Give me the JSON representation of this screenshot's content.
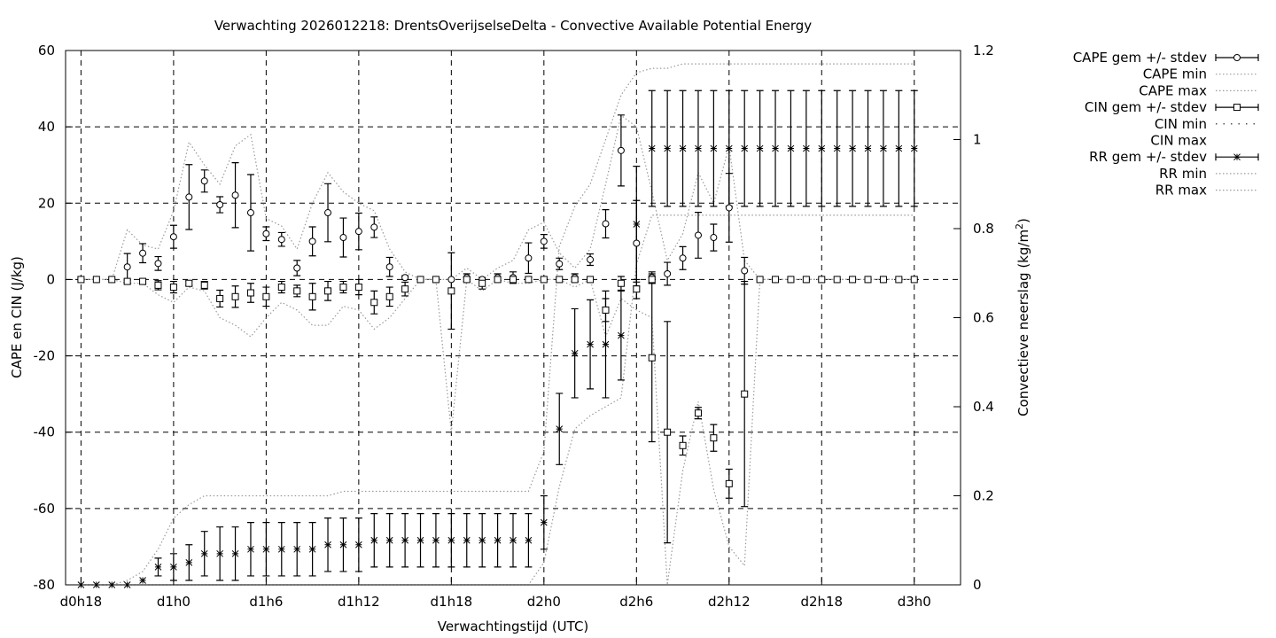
{
  "chart_data": {
    "type": "line",
    "title": "Verwachting 2026012218: DrentsOverijselseDelta - Convective Available Potential Energy",
    "xlabel": "Verwachtingstijd (UTC)",
    "ylabel": "CAPE en CIN (J/kg)",
    "y2label": "Convectieve neerslag (kg/m",
    "y2label_sup": "2",
    "y2label_tail": ")",
    "xlim": [
      -1,
      57
    ],
    "ylim": [
      -80,
      60
    ],
    "y2lim": [
      0,
      1.2
    ],
    "grid": true,
    "legend_position": "outside-right",
    "xticks": [
      {
        "v": 0,
        "label": "d0h18"
      },
      {
        "v": 6,
        "label": "d1h0"
      },
      {
        "v": 12,
        "label": "d1h6"
      },
      {
        "v": 18,
        "label": "d1h12"
      },
      {
        "v": 24,
        "label": "d1h18"
      },
      {
        "v": 30,
        "label": "d2h0"
      },
      {
        "v": 36,
        "label": "d2h6"
      },
      {
        "v": 42,
        "label": "d2h12"
      },
      {
        "v": 48,
        "label": "d2h18"
      },
      {
        "v": 54,
        "label": "d3h0"
      }
    ],
    "yticks": [
      60,
      40,
      20,
      0,
      -20,
      -40,
      -60,
      -80
    ],
    "y2ticks": [
      "1.2",
      "1",
      "0.8",
      "0.6",
      "0.4",
      "0.2",
      "0"
    ],
    "legend": [
      "CAPE gem +/- stdev",
      "CAPE min",
      "CAPE max",
      "CIN gem +/- stdev",
      "CIN min",
      "CIN max",
      "RR gem +/- stdev",
      "RR min",
      "RR max"
    ],
    "series": [
      {
        "name": "CAPE gem +/- stdev",
        "axis": "y1",
        "marker": "circle",
        "x": [
          0,
          1,
          2,
          3,
          4,
          5,
          6,
          7,
          8,
          9,
          10,
          11,
          12,
          13,
          14,
          15,
          16,
          17,
          18,
          19,
          20,
          21,
          22,
          23,
          24,
          25,
          26,
          27,
          28,
          29,
          30,
          31,
          32,
          33,
          34,
          35,
          36,
          37,
          38,
          39,
          40,
          41,
          42,
          43,
          44,
          45,
          46,
          47,
          48,
          49,
          50,
          51,
          52,
          53,
          54
        ],
        "mean": [
          0,
          0,
          0,
          3.3,
          6.9,
          4.2,
          11.2,
          21.6,
          25.8,
          19.6,
          22.1,
          17.5,
          12,
          10.5,
          3,
          10,
          17.5,
          11,
          12.6,
          13.7,
          3.3,
          0.5,
          0,
          0,
          0,
          0.5,
          0,
          0.5,
          0.5,
          5.6,
          10,
          4.1,
          0.5,
          5.2,
          14.6,
          33.8,
          9.5,
          0.5,
          1.5,
          5.6,
          11.6,
          11,
          18.8,
          2.3,
          0,
          0,
          0,
          0,
          0,
          0,
          0,
          0,
          0,
          0,
          0
        ],
        "stdev": [
          0,
          0,
          0,
          3.5,
          2.5,
          1.8,
          3,
          8.5,
          2.9,
          2.1,
          8.5,
          10,
          1.8,
          1.8,
          2,
          3.8,
          7.6,
          5.1,
          4.8,
          2.7,
          2.5,
          0.5,
          0,
          0,
          0,
          1,
          0,
          1,
          1.5,
          4,
          1.8,
          1.5,
          1,
          1.5,
          3.7,
          9.3,
          11.2,
          1.5,
          3,
          3,
          6,
          3.5,
          9,
          3.5,
          0,
          0,
          0,
          0,
          0,
          0,
          0,
          0,
          0,
          0,
          0
        ]
      },
      {
        "name": "CIN gem +/- stdev",
        "axis": "y1",
        "marker": "square",
        "x": [
          0,
          1,
          2,
          3,
          4,
          5,
          6,
          7,
          8,
          9,
          10,
          11,
          12,
          13,
          14,
          15,
          16,
          17,
          18,
          19,
          20,
          21,
          22,
          23,
          24,
          25,
          26,
          27,
          28,
          29,
          30,
          31,
          32,
          33,
          34,
          35,
          36,
          37,
          38,
          39,
          40,
          41,
          42,
          43,
          44,
          45,
          46,
          47,
          48,
          49,
          50,
          51,
          52,
          53,
          54
        ],
        "mean": [
          0,
          0,
          0,
          -0.5,
          -0.5,
          -1.5,
          -2,
          -1,
          -1.5,
          -5,
          -4.5,
          -3.5,
          -4.5,
          -2,
          -3,
          -4.5,
          -3,
          -2,
          -2,
          -6,
          -4.5,
          -2.5,
          0,
          0,
          -3,
          0,
          -1,
          0,
          0,
          0,
          0,
          0,
          0,
          0,
          -8,
          -1,
          -2.5,
          0,
          -40,
          -43.5,
          -35,
          -41.5,
          -53.5,
          -30,
          0,
          0,
          0,
          0,
          0,
          0,
          0,
          0,
          0,
          0,
          0
        ],
        "stdev": [
          0,
          0,
          0,
          0.5,
          0.5,
          1.2,
          1.5,
          0.6,
          1,
          2.2,
          2.8,
          2.5,
          2.5,
          1.5,
          1.5,
          3.5,
          2.5,
          1.5,
          2,
          3,
          2.5,
          1.8,
          0,
          0,
          10,
          0,
          1.5,
          0,
          0.5,
          0.5,
          0,
          0,
          0.5,
          0,
          3,
          1.8,
          2.5,
          1,
          29,
          2.5,
          1.5,
          3.5,
          3.8,
          29.5,
          0,
          0,
          0,
          0,
          0,
          0,
          0,
          0,
          0,
          0,
          0
        ],
        "mean_extra": {
          "x": 37,
          "mean": -20.5,
          "stdev": 22
        }
      },
      {
        "name": "RR gem +/- stdev",
        "axis": "y2",
        "marker": "star",
        "x": [
          0,
          1,
          2,
          3,
          4,
          5,
          6,
          7,
          8,
          9,
          10,
          11,
          12,
          13,
          14,
          15,
          16,
          17,
          18,
          19,
          20,
          21,
          22,
          23,
          24,
          25,
          26,
          27,
          28,
          29,
          30,
          31,
          32,
          33,
          34,
          35,
          36,
          37,
          38,
          39,
          40,
          41,
          42,
          43,
          44,
          45,
          46,
          47,
          48,
          49,
          50,
          51,
          52,
          53,
          54
        ],
        "mean": [
          0,
          0,
          0,
          0,
          0.01,
          0.04,
          0.04,
          0.05,
          0.07,
          0.07,
          0.07,
          0.08,
          0.08,
          0.08,
          0.08,
          0.08,
          0.09,
          0.09,
          0.09,
          0.1,
          0.1,
          0.1,
          0.1,
          0.1,
          0.1,
          0.1,
          0.1,
          0.1,
          0.1,
          0.1,
          0.14,
          0.35,
          0.52,
          0.54,
          0.54,
          0.56,
          0.81,
          0.98,
          0.98,
          0.98,
          0.98,
          0.98,
          0.98,
          0.98,
          0.98,
          0.98,
          0.98,
          0.98,
          0.98,
          0.98,
          0.98,
          0.98,
          0.98,
          0.98,
          0.98
        ],
        "stdev": [
          0,
          0,
          0,
          0,
          0,
          0.02,
          0.03,
          0.04,
          0.05,
          0.06,
          0.06,
          0.06,
          0.06,
          0.06,
          0.06,
          0.06,
          0.06,
          0.06,
          0.06,
          0.06,
          0.06,
          0.06,
          0.06,
          0.06,
          0.06,
          0.06,
          0.06,
          0.06,
          0.06,
          0.06,
          0.06,
          0.08,
          0.1,
          0.1,
          0.12,
          0.1,
          0.13,
          0.13,
          0.13,
          0.13,
          0.13,
          0.13,
          0.13,
          0.13,
          0.13,
          0.13,
          0.13,
          0.13,
          0.13,
          0.13,
          0.13,
          0.13,
          0.13,
          0.13,
          0.13
        ]
      }
    ],
    "bounds": [
      {
        "name": "CAPE max",
        "axis": "y1",
        "x": [
          0,
          1,
          2,
          3,
          4,
          5,
          6,
          7,
          8,
          9,
          10,
          11,
          12,
          13,
          14,
          15,
          16,
          17,
          18,
          19,
          20,
          21,
          22,
          23,
          24,
          25,
          26,
          27,
          28,
          29,
          30,
          31,
          32,
          33,
          34,
          35,
          36,
          37,
          38,
          39,
          40,
          41,
          42,
          43,
          44,
          45,
          46,
          47,
          48,
          49,
          50,
          51,
          52,
          53,
          54
        ],
        "y": [
          0,
          0,
          0,
          13,
          9,
          8,
          18,
          36,
          30,
          25,
          35,
          38,
          16,
          14,
          8,
          20,
          28,
          23,
          20,
          18,
          8,
          2,
          0,
          0,
          0,
          3,
          0,
          3,
          5,
          13,
          15,
          7,
          3,
          8,
          25,
          43,
          40,
          23,
          5,
          12,
          28,
          20,
          35,
          5,
          0,
          0,
          0,
          0,
          0,
          0,
          0,
          0,
          0,
          0,
          0
        ]
      },
      {
        "name": "CIN min",
        "axis": "y1",
        "x": [
          0,
          1,
          2,
          3,
          4,
          5,
          6,
          7,
          8,
          9,
          10,
          11,
          12,
          13,
          14,
          15,
          16,
          17,
          18,
          19,
          20,
          21,
          22,
          23,
          24,
          25,
          26,
          27,
          28,
          29,
          30,
          31,
          32,
          33,
          34,
          35,
          36,
          37,
          38,
          39,
          40,
          41,
          42,
          43,
          44,
          45,
          46,
          47,
          48,
          49,
          50,
          51,
          52,
          53,
          54
        ],
        "y": [
          0,
          0,
          0,
          -1,
          -1,
          -4,
          -6,
          -2,
          -3,
          -10,
          -12,
          -15,
          -10,
          -6,
          -8,
          -12,
          -12,
          -7,
          -8,
          -13,
          -10,
          -5,
          0,
          0,
          -40,
          0,
          -3,
          0,
          -1,
          -1,
          0,
          0,
          -2,
          0,
          -15,
          -5,
          -8,
          -10,
          -80,
          -50,
          -32,
          -55,
          -70,
          -75,
          0,
          0,
          0,
          0,
          0,
          0,
          0,
          0,
          0,
          0,
          0
        ]
      },
      {
        "name": "RR min",
        "axis": "y2",
        "x": [
          0,
          1,
          2,
          3,
          4,
          5,
          6,
          7,
          8,
          9,
          10,
          11,
          12,
          13,
          14,
          15,
          16,
          17,
          18,
          19,
          20,
          21,
          22,
          23,
          24,
          25,
          26,
          27,
          28,
          29,
          30,
          31,
          32,
          33,
          34,
          35,
          36,
          37,
          38,
          39,
          40,
          41,
          42,
          43,
          44,
          45,
          46,
          47,
          48,
          49,
          50,
          51,
          52,
          53,
          54
        ],
        "y": [
          0,
          0,
          0,
          0,
          0,
          0,
          0,
          0,
          0,
          0,
          0,
          0,
          0,
          0,
          0,
          0,
          0,
          0,
          0,
          0,
          0,
          0,
          0,
          0,
          0,
          0,
          0,
          0,
          0,
          0,
          0.05,
          0.22,
          0.35,
          0.38,
          0.4,
          0.42,
          0.72,
          0.83,
          0.83,
          0.83,
          0.83,
          0.83,
          0.83,
          0.83,
          0.83,
          0.83,
          0.83,
          0.83,
          0.83,
          0.83,
          0.83,
          0.83,
          0.83,
          0.83,
          0.83
        ]
      },
      {
        "name": "RR max",
        "axis": "y2",
        "x": [
          0,
          1,
          2,
          3,
          4,
          5,
          6,
          7,
          8,
          9,
          10,
          11,
          12,
          13,
          14,
          15,
          16,
          17,
          18,
          19,
          20,
          21,
          22,
          23,
          24,
          25,
          26,
          27,
          28,
          29,
          30,
          31,
          32,
          33,
          34,
          35,
          36,
          37,
          38,
          39,
          40,
          41,
          42,
          43,
          44,
          45,
          46,
          47,
          48,
          49,
          50,
          51,
          52,
          53,
          54
        ],
        "y": [
          0,
          0,
          0,
          0.01,
          0.03,
          0.08,
          0.15,
          0.18,
          0.2,
          0.2,
          0.2,
          0.2,
          0.2,
          0.2,
          0.2,
          0.2,
          0.2,
          0.21,
          0.21,
          0.21,
          0.21,
          0.21,
          0.21,
          0.21,
          0.21,
          0.21,
          0.21,
          0.21,
          0.21,
          0.21,
          0.3,
          0.76,
          0.85,
          0.9,
          1,
          1.1,
          1.15,
          1.16,
          1.16,
          1.17,
          1.17,
          1.17,
          1.17,
          1.17,
          1.17,
          1.17,
          1.17,
          1.17,
          1.17,
          1.17,
          1.17,
          1.17,
          1.17,
          1.17,
          1.17
        ]
      }
    ]
  }
}
